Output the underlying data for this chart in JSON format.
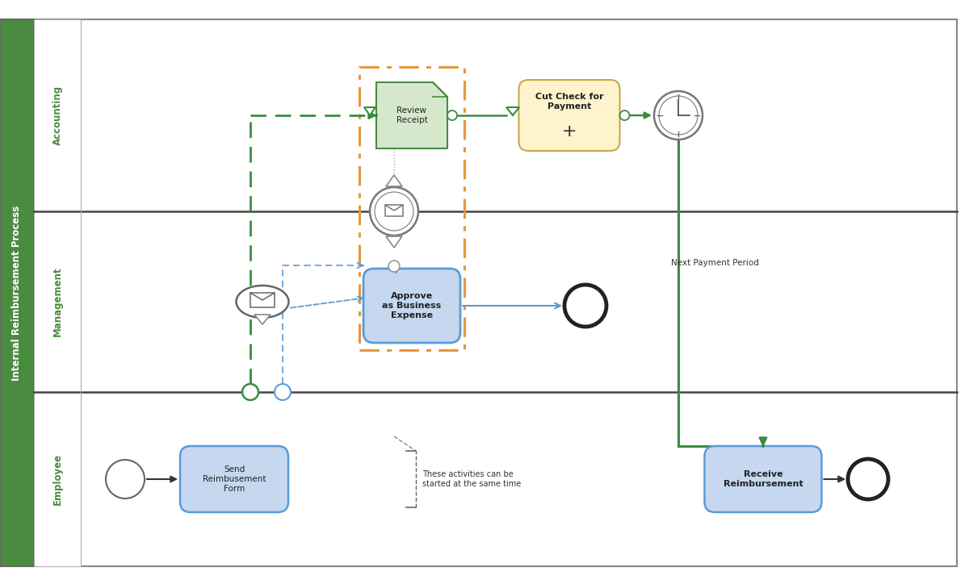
{
  "pool_title": "Internal Reimbursement Process",
  "lanes": [
    "Accounting",
    "Management",
    "Employee"
  ],
  "pool_green": "#4a8c3f",
  "task_blue_fill": "#c5d8f0",
  "task_blue_border": "#5b9bd5",
  "task_yellow_fill": "#fef3cc",
  "task_yellow_border": "#c8a84b",
  "task_green_fill": "#d5e8cc",
  "task_green_border": "#4a8c3f",
  "arrow_green": "#3a8c3f",
  "arrow_blue": "#5b9bd5",
  "arrow_black": "#333333",
  "orange_border": "#e8963a",
  "gateway_gray": "#888888",
  "fig_bg": "#ffffff",
  "outer_border": "#888888",
  "lane_div": "#444444"
}
